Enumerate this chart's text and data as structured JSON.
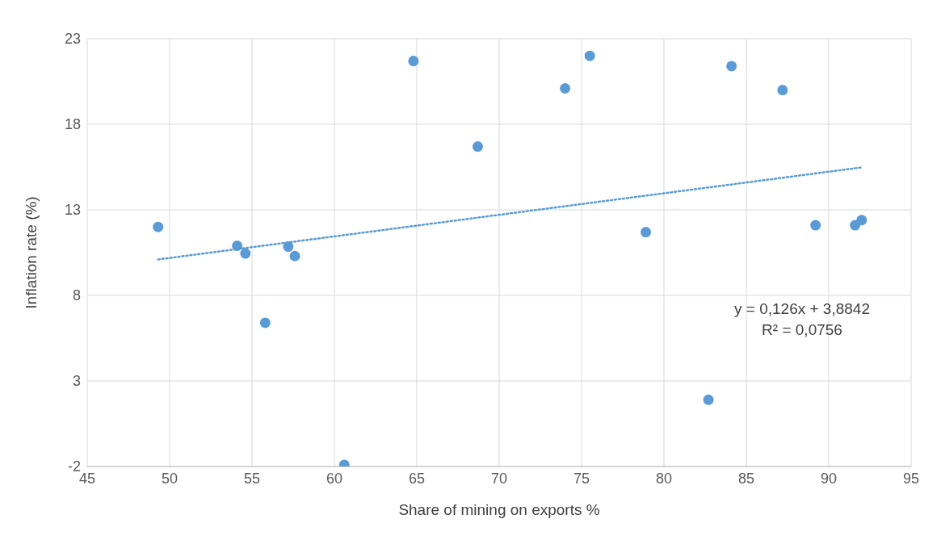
{
  "chart_data": {
    "type": "scatter",
    "xlabel": "Share of mining on exports %",
    "ylabel": "Inflation rate (%)",
    "xlim": [
      45,
      95
    ],
    "xticks": [
      45,
      50,
      55,
      60,
      65,
      70,
      75,
      80,
      85,
      90,
      95
    ],
    "ylim": [
      -2,
      23
    ],
    "yticks": [
      -2,
      3,
      8,
      13,
      18,
      23
    ],
    "grid": true,
    "series": [
      {
        "marker": "circle",
        "color": "#5b9bd5",
        "x": [
          49.3,
          54.1,
          54.6,
          55.8,
          57.2,
          57.6,
          60.6,
          64.8,
          68.7,
          74.0,
          75.5,
          78.9,
          82.7,
          84.1,
          87.2,
          89.2,
          91.6,
          92.0
        ],
        "values": [
          12.0,
          10.9,
          10.45,
          6.4,
          10.85,
          10.3,
          -1.9,
          21.7,
          16.7,
          20.1,
          22.0,
          11.7,
          1.9,
          21.4,
          20.0,
          12.1,
          12.1,
          12.4
        ]
      },
      {
        "type": "line",
        "marker": "none",
        "color": "#5b9bd5",
        "line_style": "dotted",
        "x": [
          49.3,
          92.0
        ],
        "values": [
          10.1,
          15.48
        ]
      }
    ],
    "annotations": [
      "y = 0,126x + 3,8842",
      "R² = 0,0756"
    ]
  }
}
